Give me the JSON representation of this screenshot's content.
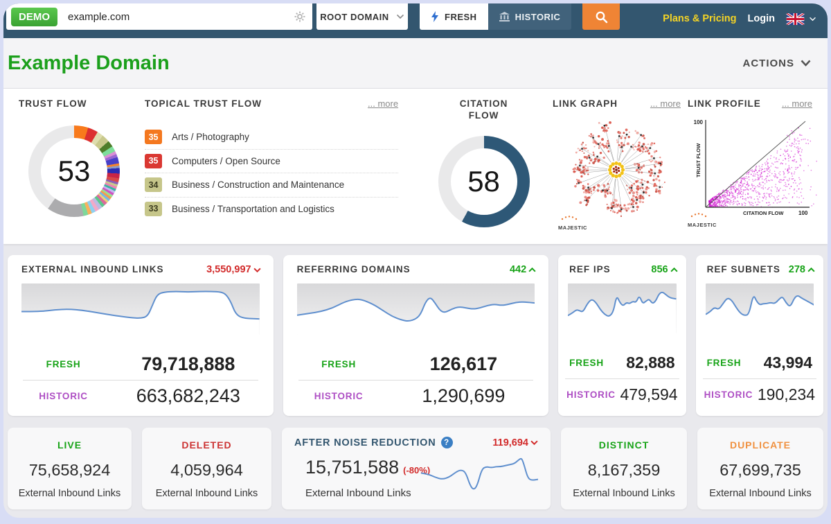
{
  "topbar": {
    "demo_badge": "DEMO",
    "search_value": "example.com",
    "root_domain_label": "ROOT DOMAIN",
    "fresh_tab": "FRESH",
    "historic_tab": "HISTORIC",
    "plans_pricing": "Plans & Pricing",
    "login": "Login"
  },
  "page": {
    "title": "Example Domain",
    "actions_label": "ACTIONS"
  },
  "flow_metrics": {
    "trust_flow": {
      "title": "TRUST FLOW",
      "value": "53",
      "segments": [
        {
          "to": 18,
          "color": "#f87a1c"
        },
        {
          "to": 31,
          "color": "#dc3030"
        },
        {
          "to": 39,
          "color": "#deddae"
        },
        {
          "to": 49,
          "color": "#c9c98c"
        },
        {
          "to": 57,
          "color": "#4e7d2a"
        },
        {
          "to": 64,
          "color": "#7fde9b"
        },
        {
          "to": 68,
          "color": "#db8fd4"
        },
        {
          "to": 72,
          "color": "#9a66d2"
        },
        {
          "to": 80,
          "color": "#4740c8"
        },
        {
          "to": 83,
          "color": "#f5832b"
        },
        {
          "to": 86,
          "color": "#8a9ac9"
        },
        {
          "to": 93,
          "color": "#2b2bb2"
        },
        {
          "to": 99,
          "color": "#c82546"
        },
        {
          "to": 104,
          "color": "#d84848"
        },
        {
          "to": 107,
          "color": "#8a5fb8"
        },
        {
          "to": 110,
          "color": "#c9c98c"
        },
        {
          "to": 113,
          "color": "#ee82b4"
        },
        {
          "to": 116,
          "color": "#3ab5a2"
        },
        {
          "to": 119,
          "color": "#c4b8ef"
        },
        {
          "to": 122,
          "color": "#ce52c4"
        },
        {
          "to": 125,
          "color": "#99e191"
        },
        {
          "to": 128,
          "color": "#f59c4e"
        },
        {
          "to": 131,
          "color": "#76b8e9"
        },
        {
          "to": 134,
          "color": "#e7d67b"
        },
        {
          "to": 138,
          "color": "#da6b9d"
        },
        {
          "to": 142,
          "color": "#59c88b"
        },
        {
          "to": 147,
          "color": "#bbbbe2"
        },
        {
          "to": 152,
          "color": "#f2a9c8"
        },
        {
          "to": 157,
          "color": "#8ed0f0"
        },
        {
          "to": 162,
          "color": "#f8b25c"
        },
        {
          "to": 168,
          "color": "#7ed89a"
        },
        {
          "to": 215,
          "color": "#acacae"
        },
        {
          "to": 360,
          "color": "#e9e9ea"
        }
      ]
    },
    "topical_trust_flow": {
      "title": "TOPICAL TRUST FLOW",
      "more_label": "... more",
      "items": [
        {
          "score": "35",
          "badge_color": "#f4781f",
          "text_color": "#ffffff",
          "label": "Arts / Photography"
        },
        {
          "score": "35",
          "badge_color": "#da3832",
          "text_color": "#ffffff",
          "label": "Computers / Open Source"
        },
        {
          "score": "34",
          "badge_color": "#c6c68a",
          "text_color": "#3c3c20",
          "label": "Business / Construction and Maintenance"
        },
        {
          "score": "33",
          "badge_color": "#c6c68a",
          "text_color": "#3c3c20",
          "label": "Business / Transportation and Logistics"
        }
      ]
    },
    "citation_flow": {
      "title": "CITATION FLOW",
      "value": "58",
      "segments": [
        {
          "to": 209,
          "color": "#2e5877"
        },
        {
          "to": 360,
          "color": "#e9e9ea"
        }
      ]
    },
    "link_graph": {
      "title": "LINK GRAPH",
      "more_label": "... more",
      "brand": "MAJESTIC"
    },
    "link_profile": {
      "title": "LINK PROFILE",
      "more_label": "... more",
      "brand": "MAJESTIC",
      "xlabel": "CITATION FLOW",
      "ylabel": "TRUST FLOW",
      "x_max_label": "100",
      "y_max_label": "100",
      "point_color": "#cc00cc",
      "axis_range": [
        0,
        100
      ]
    }
  },
  "link_cards": [
    {
      "title": "EXTERNAL INBOUND LINKS",
      "trend_value": "3,550,997",
      "trend_dir": "down",
      "fresh_label": "FRESH",
      "fresh_value": "79,718,888",
      "historic_label": "HISTORIC",
      "historic_value": "663,682,243",
      "spark": [
        [
          0,
          23
        ],
        [
          8,
          23
        ],
        [
          14,
          21.5
        ],
        [
          20,
          21
        ],
        [
          26,
          22
        ],
        [
          32,
          24
        ],
        [
          40,
          26.5
        ],
        [
          46,
          28
        ],
        [
          50,
          28.5
        ],
        [
          53,
          27
        ],
        [
          55,
          18
        ],
        [
          57,
          9
        ],
        [
          60,
          7
        ],
        [
          65,
          6.5
        ],
        [
          70,
          7
        ],
        [
          75,
          6.5
        ],
        [
          80,
          6.5
        ],
        [
          84,
          7
        ],
        [
          86,
          9
        ],
        [
          88,
          15
        ],
        [
          90,
          25
        ],
        [
          93,
          28.5
        ],
        [
          100,
          29
        ]
      ]
    },
    {
      "title": "REFERRING DOMAINS",
      "trend_value": "442",
      "trend_dir": "up",
      "fresh_label": "FRESH",
      "fresh_value": "126,617",
      "historic_label": "HISTORIC",
      "historic_value": "1,290,699",
      "spark": [
        [
          0,
          26
        ],
        [
          5,
          24.5
        ],
        [
          10,
          23
        ],
        [
          15,
          20
        ],
        [
          20,
          15
        ],
        [
          24,
          13
        ],
        [
          27,
          13
        ],
        [
          32,
          17
        ],
        [
          36,
          22
        ],
        [
          40,
          27
        ],
        [
          44,
          30
        ],
        [
          47,
          31
        ],
        [
          50,
          29
        ],
        [
          52,
          25
        ],
        [
          54,
          15
        ],
        [
          56,
          11
        ],
        [
          58,
          16
        ],
        [
          60,
          22
        ],
        [
          62,
          24
        ],
        [
          65,
          21
        ],
        [
          68,
          19
        ],
        [
          71,
          20
        ],
        [
          74,
          21
        ],
        [
          77,
          20
        ],
        [
          80,
          18
        ],
        [
          83,
          17
        ],
        [
          86,
          18
        ],
        [
          89,
          17
        ],
        [
          92,
          15.5
        ],
        [
          95,
          15
        ],
        [
          100,
          16
        ]
      ]
    },
    {
      "title": "REF IPS",
      "trend_value": "856",
      "trend_dir": "up",
      "fresh_label": "FRESH",
      "fresh_value": "82,888",
      "historic_label": "HISTORIC",
      "historic_value": "479,594",
      "spark": [
        [
          0,
          27
        ],
        [
          4,
          25
        ],
        [
          8,
          22
        ],
        [
          11,
          23
        ],
        [
          14,
          24
        ],
        [
          18,
          17
        ],
        [
          22,
          13
        ],
        [
          26,
          16
        ],
        [
          30,
          22
        ],
        [
          34,
          26
        ],
        [
          38,
          28
        ],
        [
          42,
          24
        ],
        [
          45,
          10
        ],
        [
          48,
          16
        ],
        [
          51,
          19
        ],
        [
          54,
          16
        ],
        [
          57,
          17
        ],
        [
          60,
          15
        ],
        [
          63,
          16
        ],
        [
          66,
          10
        ],
        [
          69,
          17
        ],
        [
          72,
          15
        ],
        [
          75,
          13
        ],
        [
          78,
          17
        ],
        [
          81,
          15
        ],
        [
          84,
          9
        ],
        [
          87,
          7
        ],
        [
          90,
          9
        ],
        [
          94,
          12
        ],
        [
          100,
          13
        ]
      ]
    },
    {
      "title": "REF SUBNETS",
      "trend_value": "278",
      "trend_dir": "up",
      "fresh_label": "FRESH",
      "fresh_value": "43,994",
      "historic_label": "HISTORIC",
      "historic_value": "190,234",
      "spark": [
        [
          0,
          26
        ],
        [
          4,
          24
        ],
        [
          8,
          20
        ],
        [
          12,
          22
        ],
        [
          16,
          17
        ],
        [
          20,
          12
        ],
        [
          24,
          14
        ],
        [
          28,
          20
        ],
        [
          32,
          25
        ],
        [
          36,
          27
        ],
        [
          40,
          26
        ],
        [
          44,
          9
        ],
        [
          47,
          15
        ],
        [
          50,
          18
        ],
        [
          53,
          17
        ],
        [
          56,
          17
        ],
        [
          60,
          16
        ],
        [
          64,
          17
        ],
        [
          68,
          13
        ],
        [
          71,
          11
        ],
        [
          74,
          16
        ],
        [
          78,
          20
        ],
        [
          82,
          12
        ],
        [
          85,
          10
        ],
        [
          88,
          12
        ],
        [
          92,
          14
        ],
        [
          100,
          18
        ]
      ]
    }
  ],
  "summary_cards": [
    {
      "title": "LIVE",
      "title_color": "#17a317",
      "value": "75,658,924",
      "caption": "External Inbound Links"
    },
    {
      "title": "DELETED",
      "title_color": "#cc3333",
      "value": "4,059,964",
      "caption": "External Inbound Links"
    },
    {
      "title": "DISTINCT",
      "title_color": "#17a317",
      "value": "8,167,359",
      "caption": "External Inbound Links"
    },
    {
      "title": "DUPLICATE",
      "title_color": "#f09140",
      "value": "67,699,735",
      "caption": "External Inbound Links"
    }
  ],
  "noise_card": {
    "title": "AFTER NOISE REDUCTION",
    "trend_value": "119,694",
    "trend_dir": "down",
    "value": "15,751,588",
    "delta": "(-80%)",
    "caption": "External Inbound Links",
    "spark": [
      [
        0,
        18
      ],
      [
        6,
        19
      ],
      [
        12,
        22
      ],
      [
        18,
        24
      ],
      [
        24,
        22
      ],
      [
        30,
        17
      ],
      [
        34,
        15
      ],
      [
        38,
        17
      ],
      [
        42,
        30
      ],
      [
        45,
        34
      ],
      [
        48,
        30
      ],
      [
        52,
        14
      ],
      [
        56,
        12
      ],
      [
        60,
        13
      ],
      [
        64,
        12
      ],
      [
        68,
        12
      ],
      [
        72,
        11
      ],
      [
        76,
        10
      ],
      [
        80,
        9
      ],
      [
        84,
        5
      ],
      [
        86,
        4
      ],
      [
        88,
        10
      ],
      [
        91,
        22
      ],
      [
        94,
        25
      ],
      [
        100,
        24
      ]
    ]
  }
}
